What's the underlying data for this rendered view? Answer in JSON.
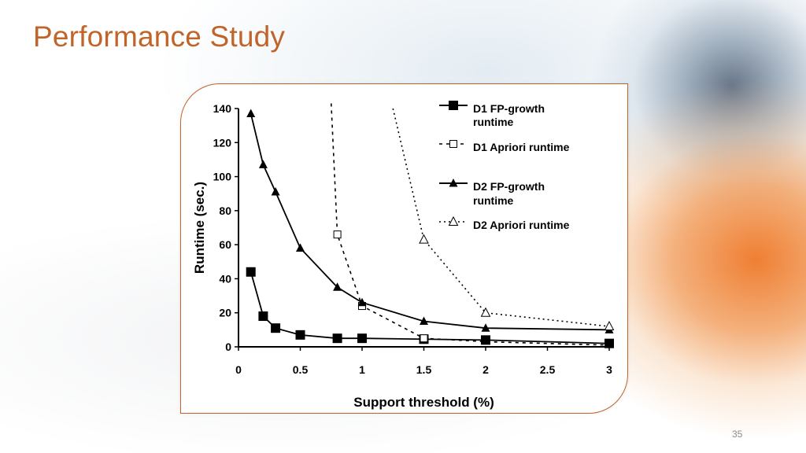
{
  "slide": {
    "title": "Performance Study",
    "number": "35"
  },
  "chart_data": {
    "type": "line",
    "title": "",
    "xlabel": "Support threshold (%)",
    "ylabel": "Runtime (sec.)",
    "xlim": [
      0,
      3
    ],
    "ylim": [
      0,
      140
    ],
    "xticks": [
      0,
      0.5,
      1,
      1.5,
      2,
      2.5,
      3
    ],
    "xtick_labels": [
      "0",
      "0.5",
      "1",
      "1.5",
      "2",
      "2.5",
      "3"
    ],
    "yticks": [
      0,
      20,
      40,
      60,
      80,
      100,
      120,
      140
    ],
    "ytick_labels": [
      "0",
      "20",
      "40",
      "60",
      "80",
      "100",
      "120",
      "140"
    ],
    "grid": false,
    "legend_position": "top-right",
    "series": [
      {
        "name": "D1 FP-growth runtime",
        "legend_lines": [
          "D1 FP-growth",
          "runtime"
        ],
        "line": "solid",
        "marker": "filled-square",
        "x": [
          0.1,
          0.2,
          0.3,
          0.5,
          0.8,
          1,
          1.5,
          2,
          3
        ],
        "y": [
          44,
          18,
          11,
          7,
          5,
          5,
          4.5,
          4,
          2
        ]
      },
      {
        "name": "D1 Apriori runtime",
        "legend_lines": [
          "D1 Apriori runtime"
        ],
        "line": "dashed",
        "marker": "open-square",
        "x": [
          0.75,
          0.8,
          1,
          1.5,
          2,
          3
        ],
        "y": [
          143,
          66,
          24,
          5,
          3,
          1
        ],
        "marker_x": [
          0.8,
          1,
          1.5
        ],
        "marker_y": [
          66,
          24,
          5
        ]
      },
      {
        "name": "D2 FP-growth runtime",
        "legend_lines": [
          "D2 FP-growth",
          "runtime"
        ],
        "line": "solid",
        "marker": "filled-triangle",
        "x": [
          0.1,
          0.2,
          0.3,
          0.5,
          0.8,
          1,
          1.5,
          2,
          3
        ],
        "y": [
          137,
          107,
          91,
          58,
          35,
          26,
          15,
          11,
          10
        ]
      },
      {
        "name": "D2 Apriori runtime",
        "legend_lines": [
          "D2 Apriori runtime"
        ],
        "line": "dotted",
        "marker": "open-triangle",
        "x": [
          1.25,
          1.5,
          2,
          3
        ],
        "y": [
          140,
          63,
          20,
          12
        ],
        "marker_x": [
          1.5,
          2,
          3
        ],
        "marker_y": [
          63,
          20,
          12
        ]
      }
    ]
  }
}
